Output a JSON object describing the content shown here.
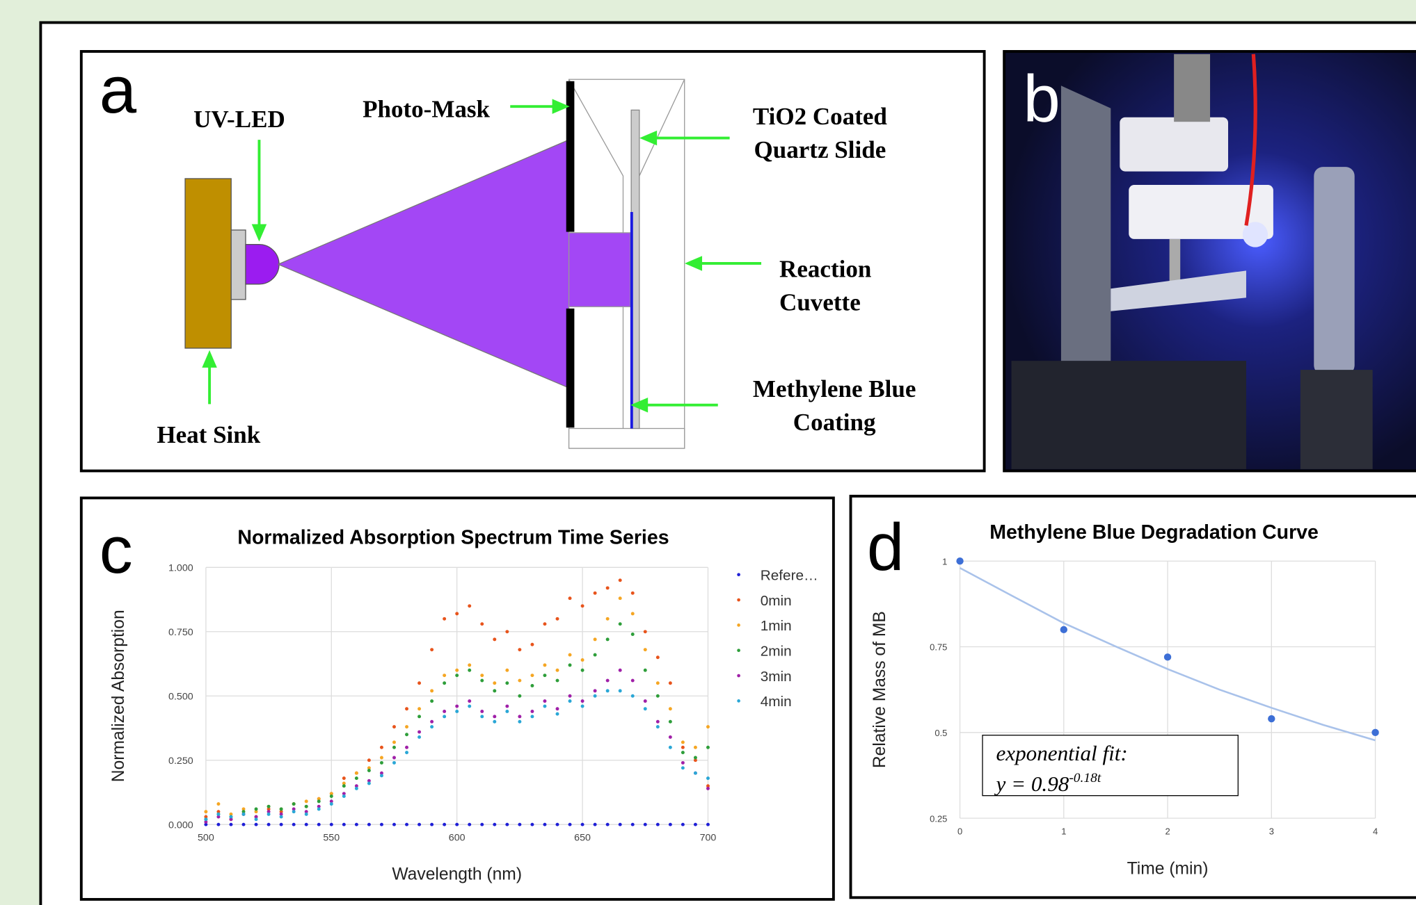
{
  "panels": [
    "a",
    "b",
    "c",
    "d"
  ],
  "diagram": {
    "labels": {
      "uv_led": "UV-LED",
      "photo_mask": "Photo-Mask",
      "slide": [
        "TiO2 Coated",
        "Quartz Slide"
      ],
      "cuvette": [
        "Reaction",
        "Cuvette"
      ],
      "coating": [
        "Methylene Blue",
        "Coating"
      ],
      "heat_sink": "Heat Sink"
    }
  },
  "chart_data": [
    {
      "type": "scatter",
      "title": "Normalized Absorption Spectrum Time Series",
      "x_label": "Wavelength (nm)",
      "y_label": "Normalized Absorption",
      "x": [
        500,
        505,
        510,
        515,
        520,
        525,
        530,
        535,
        540,
        545,
        550,
        555,
        560,
        565,
        570,
        575,
        580,
        585,
        590,
        595,
        600,
        605,
        610,
        615,
        620,
        625,
        630,
        635,
        640,
        645,
        650,
        655,
        660,
        665,
        670,
        675,
        680,
        685,
        690,
        695,
        700
      ],
      "series": [
        {
          "name": "Refere…",
          "color": "#1f1fd6",
          "values": [
            0,
            0,
            0,
            0,
            0,
            0,
            0,
            0,
            0,
            0,
            0,
            0,
            0,
            0,
            0,
            0,
            0,
            0,
            0,
            0,
            0,
            0,
            0,
            0,
            0,
            0,
            0,
            0,
            0,
            0,
            0,
            0,
            0,
            0,
            0,
            0,
            0,
            0,
            0,
            0,
            0
          ]
        },
        {
          "name": "0min",
          "color": "#e8541c",
          "values": [
            0.03,
            0.05,
            0.02,
            0.04,
            0.03,
            0.06,
            0.05,
            0.08,
            0.07,
            0.1,
            0.12,
            0.18,
            0.2,
            0.25,
            0.3,
            0.38,
            0.45,
            0.55,
            0.68,
            0.8,
            0.82,
            0.85,
            0.78,
            0.72,
            0.75,
            0.68,
            0.7,
            0.78,
            0.8,
            0.88,
            0.85,
            0.9,
            0.92,
            0.95,
            0.9,
            0.75,
            0.65,
            0.55,
            0.3,
            0.25,
            0.15
          ]
        },
        {
          "name": "1min",
          "color": "#f5a623",
          "values": [
            0.05,
            0.08,
            0.04,
            0.06,
            0.05,
            0.07,
            0.06,
            0.08,
            0.09,
            0.1,
            0.12,
            0.16,
            0.2,
            0.22,
            0.26,
            0.32,
            0.38,
            0.45,
            0.52,
            0.58,
            0.6,
            0.62,
            0.58,
            0.55,
            0.6,
            0.56,
            0.58,
            0.62,
            0.6,
            0.66,
            0.64,
            0.72,
            0.8,
            0.88,
            0.82,
            0.68,
            0.55,
            0.45,
            0.32,
            0.3,
            0.38
          ]
        },
        {
          "name": "2min",
          "color": "#2e9e3a",
          "values": [
            0.02,
            0.04,
            0.03,
            0.05,
            0.06,
            0.07,
            0.06,
            0.08,
            0.07,
            0.09,
            0.11,
            0.15,
            0.18,
            0.21,
            0.24,
            0.3,
            0.35,
            0.42,
            0.48,
            0.55,
            0.58,
            0.6,
            0.56,
            0.52,
            0.55,
            0.5,
            0.54,
            0.58,
            0.56,
            0.62,
            0.6,
            0.66,
            0.72,
            0.78,
            0.74,
            0.6,
            0.5,
            0.4,
            0.28,
            0.26,
            0.3
          ]
        },
        {
          "name": "3min",
          "color": "#a020a8",
          "values": [
            0.01,
            0.03,
            0.02,
            0.04,
            0.03,
            0.05,
            0.04,
            0.06,
            0.05,
            0.07,
            0.09,
            0.12,
            0.15,
            0.17,
            0.2,
            0.26,
            0.3,
            0.36,
            0.4,
            0.44,
            0.46,
            0.48,
            0.44,
            0.42,
            0.46,
            0.42,
            0.44,
            0.48,
            0.45,
            0.5,
            0.48,
            0.52,
            0.56,
            0.6,
            0.56,
            0.48,
            0.4,
            0.34,
            0.24,
            0.2,
            0.14
          ]
        },
        {
          "name": "4min",
          "color": "#2aa7d6",
          "values": [
            0.02,
            0.04,
            0.03,
            0.04,
            0.02,
            0.04,
            0.03,
            0.05,
            0.04,
            0.06,
            0.08,
            0.11,
            0.14,
            0.16,
            0.19,
            0.24,
            0.28,
            0.34,
            0.38,
            0.42,
            0.44,
            0.46,
            0.42,
            0.4,
            0.44,
            0.4,
            0.42,
            0.46,
            0.43,
            0.48,
            0.46,
            0.5,
            0.52,
            0.52,
            0.5,
            0.45,
            0.38,
            0.3,
            0.22,
            0.2,
            0.18
          ]
        }
      ],
      "xlim": [
        500,
        700
      ],
      "xticks": [
        500,
        550,
        600,
        650,
        700
      ],
      "ylim": [
        0,
        1
      ],
      "yticks": [
        {
          "value": 0,
          "label": "0.000"
        },
        {
          "value": 0.25,
          "label": "0.250"
        },
        {
          "value": 0.5,
          "label": "0.500"
        },
        {
          "value": 0.75,
          "label": "0.750"
        },
        {
          "value": 1,
          "label": "1.000"
        }
      ],
      "grid": true,
      "legend": "right"
    },
    {
      "type": "scatter",
      "title": "Methylene Blue Degradation Curve",
      "x_label": "Time (min)",
      "y_label": "Relative Mass of MB",
      "x": [
        0,
        1,
        2,
        3,
        4
      ],
      "values": [
        1,
        0.8,
        0.72,
        0.54,
        0.5
      ],
      "color": "#3d6fd6",
      "fit": {
        "x": [
          0,
          0.5,
          1,
          1.5,
          2,
          2.5,
          3,
          3.5,
          4
        ],
        "values": [
          0.98,
          0.899,
          0.819,
          0.751,
          0.685,
          0.625,
          0.572,
          0.522,
          0.477
        ],
        "color": "#a9c2ea"
      },
      "annotation": [
        "exponential fit:",
        "y = 0.98",
        "-0.18t"
      ],
      "xlim": [
        0,
        4
      ],
      "xticks": [
        0,
        1,
        2,
        3,
        4
      ],
      "ylim": [
        0.25,
        1
      ],
      "yticks": [
        0.25,
        0.5,
        0.75,
        1
      ],
      "grid": true
    }
  ]
}
